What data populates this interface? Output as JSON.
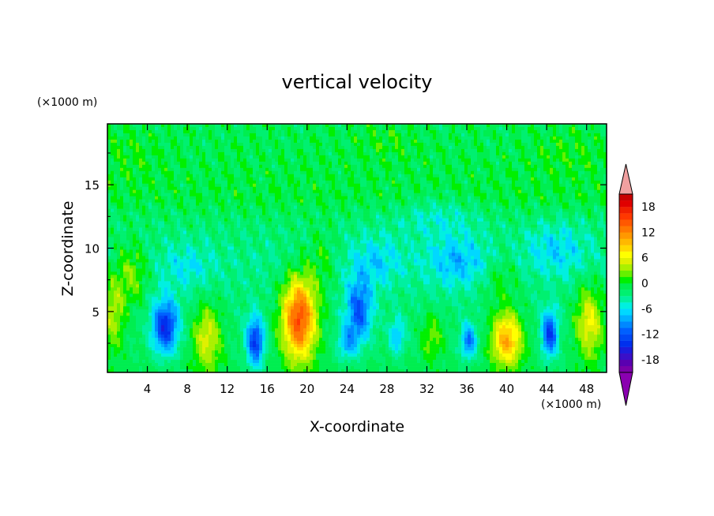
{
  "chart_data": {
    "type": "heatmap",
    "title": "vertical velocity",
    "xlabel": "X-coordinate",
    "ylabel": "Z-coordinate",
    "x_unit": "(×1000 m)",
    "y_unit": "(×1000 m)",
    "xlim": [
      0,
      50
    ],
    "ylim": [
      0.2,
      19.8
    ],
    "x_ticks": [
      4,
      8,
      12,
      16,
      20,
      24,
      28,
      32,
      36,
      40,
      44,
      48
    ],
    "y_ticks": [
      5,
      10,
      15
    ],
    "x_tick_labels": [
      "4",
      "8",
      "12",
      "16",
      "20",
      "24",
      "28",
      "32",
      "36",
      "40",
      "44",
      "48"
    ],
    "y_tick_labels": [
      "5",
      "10",
      "15"
    ],
    "colorbar": {
      "levels": [
        -21,
        -19.5,
        -18,
        -16.5,
        -15,
        -13.5,
        -12,
        -10.5,
        -9,
        -7.5,
        -6,
        -4.5,
        -3,
        -1.5,
        0,
        1.5,
        3,
        4.5,
        6,
        7.5,
        9,
        10.5,
        12,
        13.5,
        15,
        16.5,
        18,
        19.5,
        21
      ],
      "tick_values": [
        -18,
        -12,
        -6,
        0,
        6,
        12,
        18
      ],
      "tick_labels": [
        "-18",
        "-12",
        "-6",
        "0",
        "6",
        "12",
        "18"
      ],
      "colors": [
        "#7a00a8",
        "#5a00b0",
        "#3a10c8",
        "#1c1cdc",
        "#0030ee",
        "#0048f5",
        "#0060ff",
        "#0088ff",
        "#00b0ff",
        "#00d8ff",
        "#00f0e0",
        "#00f0a0",
        "#00f070",
        "#00ee50",
        "#00f000",
        "#66f000",
        "#aaf000",
        "#e0f000",
        "#ffff00",
        "#ffd800",
        "#ffb800",
        "#ff9800",
        "#ff7800",
        "#ff5800",
        "#ff3800",
        "#f02000",
        "#e00000",
        "#c80000"
      ],
      "under_color": "#8a00b0",
      "over_color": "#f0a0a0"
    },
    "features": [
      {
        "x": 0.5,
        "z": 5.0,
        "sx": 1.2,
        "sz": 3.0,
        "w": 6
      },
      {
        "x": 2.5,
        "z": 8.0,
        "sx": 1.6,
        "sz": 2.5,
        "w": 5
      },
      {
        "x": 5.8,
        "z": 3.8,
        "sx": 1.3,
        "sz": 2.1,
        "w": -13
      },
      {
        "x": 10.0,
        "z": 3.0,
        "sx": 1.4,
        "sz": 2.6,
        "w": 7
      },
      {
        "x": 14.8,
        "z": 2.6,
        "sx": 0.9,
        "sz": 2.0,
        "w": -12
      },
      {
        "x": 19.2,
        "z": 4.5,
        "sx": 1.7,
        "sz": 3.2,
        "w": 17
      },
      {
        "x": 21.5,
        "z": 9.0,
        "sx": 1.4,
        "sz": 2.5,
        "w": 3
      },
      {
        "x": 25.2,
        "z": 5.0,
        "sx": 1.3,
        "sz": 2.5,
        "w": -10
      },
      {
        "x": 24.0,
        "z": 2.5,
        "sx": 1.0,
        "sz": 1.3,
        "w": -6
      },
      {
        "x": 29.0,
        "z": 3.0,
        "sx": 0.8,
        "sz": 1.5,
        "w": -6
      },
      {
        "x": 32.5,
        "z": 3.0,
        "sx": 1.1,
        "sz": 1.8,
        "w": 4
      },
      {
        "x": 36.2,
        "z": 2.6,
        "sx": 0.8,
        "sz": 1.4,
        "w": -9
      },
      {
        "x": 40.0,
        "z": 2.8,
        "sx": 1.5,
        "sz": 2.1,
        "w": 12
      },
      {
        "x": 39.5,
        "z": 7.5,
        "sx": 1.8,
        "sz": 2.0,
        "w": 3
      },
      {
        "x": 44.3,
        "z": 3.2,
        "sx": 0.8,
        "sz": 1.8,
        "w": -12
      },
      {
        "x": 48.3,
        "z": 4.2,
        "sx": 1.4,
        "sz": 2.8,
        "w": 8
      },
      {
        "x": 27.0,
        "z": 9.0,
        "sx": 2.5,
        "sz": 2.0,
        "w": -4
      },
      {
        "x": 35.0,
        "z": 9.0,
        "sx": 3.0,
        "sz": 2.0,
        "w": -5
      },
      {
        "x": 8.0,
        "z": 8.5,
        "sx": 2.5,
        "sz": 1.8,
        "w": -3
      },
      {
        "x": 45.0,
        "z": 10.0,
        "sx": 3.0,
        "sz": 2.0,
        "w": -4
      },
      {
        "x": 33.0,
        "z": 12.5,
        "sx": 4.0,
        "sz": 1.5,
        "w": -3
      },
      {
        "x": 2.0,
        "z": 17.5,
        "sx": 3.0,
        "sz": 2.0,
        "w": 1.5
      },
      {
        "x": 46.0,
        "z": 17.5,
        "sx": 3.5,
        "sz": 2.0,
        "w": 1.5
      },
      {
        "x": 28.0,
        "z": 18.5,
        "sx": 3.0,
        "sz": 1.5,
        "w": 1.5
      }
    ],
    "background_profile": [
      {
        "z": 0.2,
        "w": -1.0
      },
      {
        "z": 9.0,
        "w": -3.0
      },
      {
        "z": 12.0,
        "w": -2.0
      },
      {
        "z": 14.0,
        "w": -0.5
      },
      {
        "z": 19.8,
        "w": -1.2
      }
    ],
    "noise_amplitude": 2.5
  }
}
